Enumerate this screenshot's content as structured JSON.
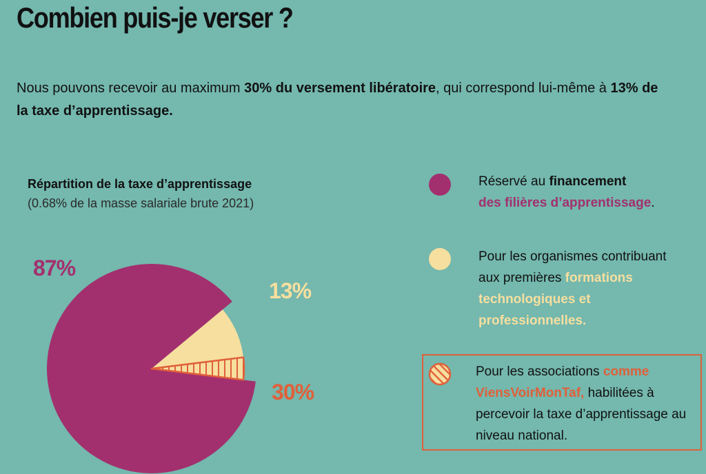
{
  "title": "Combien puis-je verser ?",
  "intro": {
    "part1": "Nous pouvons recevoir au maximum ",
    "bold1": "30% du versement libératoire",
    "part2": ", qui correspond lui-même à ",
    "bold2": "13% de la taxe d’apprentissage."
  },
  "colors": {
    "background": "#74b8ae",
    "magenta": "#a3306e",
    "cream": "#f7df9f",
    "orange": "#e0603a"
  },
  "legend": [
    {
      "swatch": "magenta",
      "text": "Réservé au ",
      "bold": "financement",
      "highlight": "des filières d’apprentissage",
      "end": "."
    },
    {
      "swatch": "cream",
      "text": "Pour les organismes contribuant aux premières ",
      "highlight": "formations technologiques et professionnelles."
    },
    {
      "swatch": "orange-hatched",
      "text": "Pour les associations ",
      "highlight": "comme ViensVoirMonTaf,",
      "end": " habilitées à percevoir la taxe d’apprentissage au niveau national."
    }
  ],
  "chart_data": {
    "type": "pie",
    "title": "Répartition de la taxe d’apprentissage",
    "subtitle": "(0.68% de la masse salariale brute 2021)",
    "slices": [
      {
        "label": "87%",
        "value": 87,
        "color": "#a3306e"
      },
      {
        "label": "13%",
        "value": 13,
        "color": "#f7df9f"
      },
      {
        "label": "30%",
        "value": 30,
        "of": "13%",
        "color": "#e0603a",
        "pattern": "hatched"
      }
    ]
  }
}
